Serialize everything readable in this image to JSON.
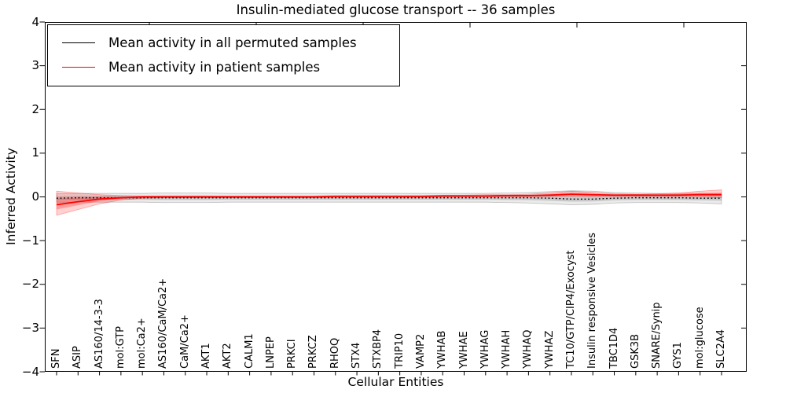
{
  "chart_data": {
    "type": "line",
    "title": "Insulin-mediated glucose transport -- 36 samples",
    "xlabel": "Cellular Entities",
    "ylabel": "Inferred Activity",
    "ylim": [
      -4,
      4
    ],
    "yticks": [
      4,
      3,
      2,
      1,
      0,
      -1,
      -2,
      -3,
      -4
    ],
    "grid": false,
    "legend_position": "upper left",
    "categories": [
      "SFN",
      "ASIP",
      "AS160/14-3-3",
      "mol:GTP",
      "mol:Ca2+",
      "AS160/CaM/Ca2+",
      "CaM/Ca2+",
      "AKT1",
      "AKT2",
      "CALM1",
      "LNPEP",
      "PRKCI",
      "PRKCZ",
      "RHOQ",
      "STX4",
      "STXBP4",
      "TRIP10",
      "VAMP2",
      "YWHAB",
      "YWHAE",
      "YWHAG",
      "YWHAH",
      "YWHAQ",
      "YWHAZ",
      "TC10/GTP/CIP4/Exocyst",
      "Insulin responsive Vesicles",
      "TBC1D4",
      "GSK3B",
      "SNARE/Synip",
      "GYS1",
      "mol:glucose",
      "SLC2A4"
    ],
    "series": [
      {
        "name": "Mean activity in all permuted samples",
        "color": "#000000",
        "style": "dotted",
        "values": [
          -0.03,
          -0.02,
          -0.02,
          -0.02,
          -0.02,
          -0.02,
          -0.02,
          -0.02,
          -0.02,
          -0.02,
          -0.02,
          -0.02,
          -0.02,
          -0.02,
          -0.02,
          -0.02,
          -0.02,
          -0.02,
          -0.02,
          -0.02,
          -0.02,
          -0.02,
          -0.02,
          -0.03,
          -0.05,
          -0.05,
          -0.03,
          -0.02,
          -0.02,
          -0.02,
          -0.03,
          -0.03
        ],
        "band_upper": [
          0.07,
          0.08,
          0.08,
          0.08,
          0.08,
          0.09,
          0.09,
          0.09,
          0.08,
          0.08,
          0.08,
          0.08,
          0.08,
          0.08,
          0.08,
          0.08,
          0.08,
          0.08,
          0.08,
          0.08,
          0.08,
          0.09,
          0.1,
          0.12,
          0.14,
          0.13,
          0.1,
          0.09,
          0.08,
          0.08,
          0.08,
          0.07
        ],
        "band_lower": [
          -0.12,
          -0.12,
          -0.12,
          -0.12,
          -0.12,
          -0.13,
          -0.13,
          -0.13,
          -0.12,
          -0.12,
          -0.12,
          -0.12,
          -0.12,
          -0.12,
          -0.12,
          -0.12,
          -0.12,
          -0.12,
          -0.12,
          -0.12,
          -0.12,
          -0.13,
          -0.14,
          -0.16,
          -0.18,
          -0.17,
          -0.14,
          -0.13,
          -0.13,
          -0.13,
          -0.14,
          -0.16
        ],
        "band_color": "#000000",
        "band_alpha": 0.08
      },
      {
        "name": "Mean activity in patient samples",
        "color": "#ff0000",
        "style": "solid",
        "values": [
          -0.18,
          -0.11,
          -0.05,
          -0.02,
          0.0,
          0.0,
          0.0,
          0.0,
          0.0,
          0.0,
          0.0,
          0.0,
          0.0,
          0.01,
          0.01,
          0.01,
          0.01,
          0.01,
          0.02,
          0.02,
          0.02,
          0.03,
          0.03,
          0.04,
          0.06,
          0.05,
          0.04,
          0.04,
          0.04,
          0.04,
          0.05,
          0.05
        ],
        "band_upper": [
          0.13,
          0.09,
          0.05,
          0.03,
          0.02,
          0.02,
          0.02,
          0.02,
          0.02,
          0.02,
          0.02,
          0.02,
          0.02,
          0.03,
          0.03,
          0.03,
          0.03,
          0.03,
          0.04,
          0.04,
          0.05,
          0.05,
          0.06,
          0.09,
          0.13,
          0.1,
          0.07,
          0.06,
          0.07,
          0.09,
          0.13,
          0.16
        ],
        "band_lower": [
          -0.42,
          -0.29,
          -0.16,
          -0.07,
          -0.03,
          -0.02,
          -0.02,
          -0.02,
          -0.02,
          -0.02,
          -0.02,
          -0.02,
          -0.02,
          -0.01,
          -0.01,
          -0.01,
          -0.01,
          -0.01,
          0.0,
          0.0,
          0.0,
          0.0,
          0.0,
          0.01,
          0.02,
          0.01,
          0.01,
          0.01,
          0.01,
          0.01,
          0.0,
          -0.02
        ],
        "band_color": "#ff0000",
        "band_alpha": 0.18
      }
    ],
    "legend": [
      {
        "label": "Mean activity in all permuted samples",
        "color": "#000000"
      },
      {
        "label": "Mean activity in patient samples",
        "color": "#ff0000"
      }
    ]
  }
}
